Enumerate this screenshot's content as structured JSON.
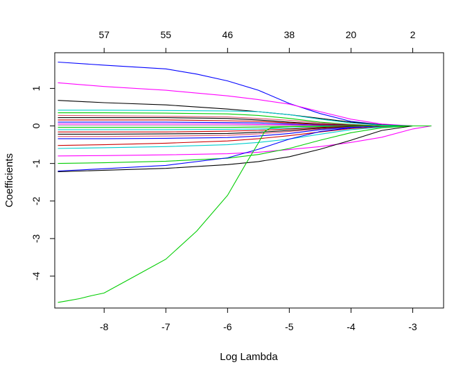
{
  "chart_data": {
    "type": "line",
    "title": "",
    "xlabel": "Log Lambda",
    "ylabel": "Coefficients",
    "xlim": [
      -8.8,
      -2.5
    ],
    "ylim": [
      -4.85,
      1.95
    ],
    "x_ticks": [
      "-8",
      "-7",
      "-6",
      "-5",
      "-4",
      "-3"
    ],
    "x_tick_values": [
      -8,
      -7,
      -6,
      -5,
      -4,
      -3
    ],
    "y_ticks": [
      "-4",
      "-3",
      "-2",
      "-1",
      "0",
      "1"
    ],
    "y_tick_values": [
      -4,
      -3,
      -2,
      -1,
      0,
      1
    ],
    "top_ticks": [
      "57",
      "55",
      "46",
      "38",
      "20",
      "2"
    ],
    "top_tick_values": [
      -8,
      -7,
      -6,
      -5,
      -4,
      -3
    ],
    "series": [
      {
        "color": "#0000ff",
        "x": [
          -8.75,
          -8,
          -7,
          -6.5,
          -6,
          -5.5,
          -5,
          -4.5,
          -4,
          -3.5,
          -3,
          -2.7
        ],
        "values": [
          1.7,
          1.62,
          1.52,
          1.38,
          1.2,
          0.95,
          0.6,
          0.33,
          0.12,
          0.03,
          0.0,
          0.0
        ]
      },
      {
        "color": "#ff00ff",
        "x": [
          -8.75,
          -8,
          -7,
          -6,
          -5.5,
          -5,
          -4.5,
          -4,
          -3.5,
          -3,
          -2.7
        ],
        "values": [
          1.15,
          1.05,
          0.95,
          0.8,
          0.7,
          0.58,
          0.38,
          0.18,
          0.05,
          0.0,
          0.0
        ]
      },
      {
        "color": "#000000",
        "x": [
          -8.75,
          -8,
          -7,
          -6,
          -5.5,
          -5,
          -4.5,
          -4,
          -3.5,
          -3,
          -2.7
        ],
        "values": [
          0.68,
          0.62,
          0.56,
          0.45,
          0.38,
          0.3,
          0.2,
          0.1,
          0.03,
          0.0,
          0.0
        ]
      },
      {
        "color": "#00cdcd",
        "x": [
          -8.75,
          -8,
          -7,
          -6,
          -5.5,
          -5,
          -4.5,
          -4,
          -3.5,
          -3,
          -2.7
        ],
        "values": [
          0.42,
          0.42,
          0.41,
          0.4,
          0.38,
          0.3,
          0.18,
          0.08,
          0.02,
          0.0,
          0.0
        ]
      },
      {
        "color": "#00cd00",
        "x": [
          -8.75,
          -8,
          -7,
          -6,
          -5.5,
          -5,
          -4.5,
          -4,
          -3.5,
          -3,
          -2.7
        ],
        "values": [
          0.35,
          0.35,
          0.34,
          0.32,
          0.28,
          0.2,
          0.1,
          0.04,
          0.0,
          0.0,
          0.0
        ]
      },
      {
        "color": "#df536b",
        "x": [
          -8.75,
          -8,
          -7,
          -6,
          -5.5,
          -5,
          -4.5,
          -4,
          -3.5,
          -3,
          -2.7
        ],
        "values": [
          0.28,
          0.27,
          0.26,
          0.24,
          0.2,
          0.15,
          0.08,
          0.03,
          0.0,
          0.0,
          0.0
        ]
      },
      {
        "color": "#000000",
        "x": [
          -8.75,
          -8,
          -7,
          -6,
          -5.5,
          -5,
          -4.5,
          -4,
          -3.5,
          -3,
          -2.7
        ],
        "values": [
          0.22,
          0.22,
          0.22,
          0.2,
          0.16,
          0.1,
          0.05,
          0.02,
          0.0,
          0.0,
          0.0
        ]
      },
      {
        "color": "#cd0000",
        "x": [
          -8.75,
          -8,
          -7,
          -6,
          -5.5,
          -5,
          -4.5,
          -4,
          -3.5,
          -3,
          -2.7
        ],
        "values": [
          0.16,
          0.16,
          0.16,
          0.14,
          0.12,
          0.08,
          0.04,
          0.01,
          0.0,
          0.0,
          0.0
        ]
      },
      {
        "color": "#0000ff",
        "x": [
          -8.75,
          -8,
          -7,
          -6,
          -5.5,
          -5,
          -4.5,
          -4,
          -3.5,
          -3,
          -2.7
        ],
        "values": [
          0.1,
          0.1,
          0.1,
          0.09,
          0.08,
          0.05,
          0.02,
          0.0,
          0.0,
          0.0,
          0.0
        ]
      },
      {
        "color": "#ff00ff",
        "x": [
          -8.75,
          -8,
          -7,
          -6,
          -5.5,
          -5,
          -4.5,
          -4,
          -3.5,
          -3,
          -2.7
        ],
        "values": [
          0.05,
          0.05,
          0.05,
          0.05,
          0.04,
          0.03,
          0.01,
          0.0,
          0.0,
          0.0,
          0.0
        ]
      },
      {
        "color": "#9e9e9e",
        "x": [
          -8.75,
          -8,
          -7,
          -6,
          -5.5,
          -5,
          -4.5,
          -4,
          -3.5,
          -3,
          -2.7
        ],
        "values": [
          0.01,
          0.01,
          0.01,
          0.01,
          0.01,
          0.01,
          0.0,
          0.0,
          0.0,
          0.0,
          0.0
        ]
      },
      {
        "color": "#00cd00",
        "x": [
          -8.75,
          -8,
          -7,
          -6,
          -5.5,
          -5,
          -4.5,
          -4,
          -3.5,
          -3,
          -2.7
        ],
        "values": [
          -0.04,
          -0.04,
          -0.04,
          -0.04,
          -0.03,
          -0.02,
          -0.01,
          0.0,
          0.0,
          0.0,
          0.0
        ]
      },
      {
        "color": "#00cdcd",
        "x": [
          -8.75,
          -8,
          -7,
          -6,
          -5.5,
          -5,
          -4.5,
          -4,
          -3.5,
          -3,
          -2.7
        ],
        "values": [
          -0.1,
          -0.1,
          -0.1,
          -0.09,
          -0.08,
          -0.06,
          -0.03,
          -0.01,
          0.0,
          0.0,
          0.0
        ]
      },
      {
        "color": "#cd0000",
        "x": [
          -8.75,
          -8,
          -7,
          -6,
          -5.5,
          -5,
          -4.5,
          -4,
          -3.5,
          -3,
          -2.7
        ],
        "values": [
          -0.16,
          -0.16,
          -0.16,
          -0.14,
          -0.12,
          -0.08,
          -0.04,
          -0.01,
          0.0,
          0.0,
          0.0
        ]
      },
      {
        "color": "#000000",
        "x": [
          -8.75,
          -8,
          -7,
          -6,
          -5.5,
          -5,
          -4.5,
          -4,
          -3.5,
          -3,
          -2.7
        ],
        "values": [
          -0.22,
          -0.22,
          -0.21,
          -0.2,
          -0.17,
          -0.12,
          -0.06,
          -0.02,
          0.0,
          0.0,
          0.0
        ]
      },
      {
        "color": "#df536b",
        "x": [
          -8.75,
          -8,
          -7,
          -6,
          -5.5,
          -5,
          -4.5,
          -4,
          -3.5,
          -3,
          -2.7
        ],
        "values": [
          -0.28,
          -0.28,
          -0.27,
          -0.25,
          -0.21,
          -0.15,
          -0.08,
          -0.03,
          0.0,
          0.0,
          0.0
        ]
      },
      {
        "color": "#0000ff",
        "x": [
          -8.75,
          -8,
          -7,
          -6,
          -5.5,
          -5,
          -4.5,
          -4,
          -3.5,
          -3,
          -2.7
        ],
        "values": [
          -0.34,
          -0.34,
          -0.33,
          -0.31,
          -0.27,
          -0.2,
          -0.1,
          -0.04,
          0.0,
          0.0,
          0.0
        ]
      },
      {
        "color": "#cd0000",
        "x": [
          -8.75,
          -8,
          -7,
          -6,
          -5.5,
          -5,
          -4.5,
          -4,
          -3.5,
          -3,
          -2.7
        ],
        "values": [
          -0.52,
          -0.5,
          -0.46,
          -0.4,
          -0.34,
          -0.26,
          -0.16,
          -0.07,
          -0.02,
          0.0,
          0.0
        ]
      },
      {
        "color": "#00cdcd",
        "x": [
          -8.75,
          -8,
          -7,
          -6,
          -5.5,
          -5,
          -4.5,
          -4,
          -3.5,
          -3,
          -2.7
        ],
        "values": [
          -0.6,
          -0.58,
          -0.55,
          -0.5,
          -0.44,
          -0.35,
          -0.22,
          -0.1,
          -0.03,
          0.0,
          0.0
        ]
      },
      {
        "color": "#ff00ff",
        "x": [
          -8.75,
          -8,
          -7,
          -6,
          -5.5,
          -5,
          -4.5,
          -4,
          -3.5,
          -3,
          -2.7
        ],
        "values": [
          -0.8,
          -0.79,
          -0.77,
          -0.74,
          -0.7,
          -0.63,
          -0.55,
          -0.44,
          -0.3,
          -0.08,
          0.0
        ]
      },
      {
        "color": "#00cd00",
        "x": [
          -8.75,
          -8,
          -7,
          -6,
          -5.5,
          -5,
          -4.5,
          -4,
          -3.5,
          -3,
          -2.7
        ],
        "values": [
          -1.0,
          -0.98,
          -0.94,
          -0.86,
          -0.76,
          -0.6,
          -0.38,
          -0.18,
          -0.05,
          0.0,
          0.0
        ]
      },
      {
        "color": "#0000ff",
        "x": [
          -8.75,
          -8,
          -7,
          -6,
          -5.5,
          -5,
          -4.5,
          -4,
          -3.5,
          -3,
          -2.7
        ],
        "values": [
          -1.2,
          -1.14,
          -1.05,
          -0.85,
          -0.62,
          -0.35,
          -0.15,
          -0.05,
          0.0,
          0.0,
          0.0
        ]
      },
      {
        "color": "#000000",
        "x": [
          -8.75,
          -8,
          -7,
          -6,
          -5.5,
          -5,
          -4.5,
          -4,
          -3.5,
          -3,
          -2.7
        ],
        "values": [
          -1.22,
          -1.18,
          -1.13,
          -1.03,
          -0.95,
          -0.82,
          -0.62,
          -0.38,
          -0.12,
          0.0,
          0.0
        ]
      },
      {
        "color": "#00cd00",
        "x": [
          -8.75,
          -8.6,
          -8.4,
          -8.2,
          -8,
          -7.5,
          -7,
          -6.5,
          -6,
          -5.7,
          -5.5,
          -5.4,
          -5.3,
          -5.0,
          -4.5,
          -4.0,
          -3.5,
          -3.0,
          -2.7
        ],
        "values": [
          -4.7,
          -4.66,
          -4.6,
          -4.52,
          -4.45,
          -4.0,
          -3.55,
          -2.8,
          -1.85,
          -1.0,
          -0.45,
          -0.15,
          -0.05,
          -0.02,
          0.0,
          0.0,
          0.0,
          0.0,
          0.0
        ]
      }
    ]
  }
}
